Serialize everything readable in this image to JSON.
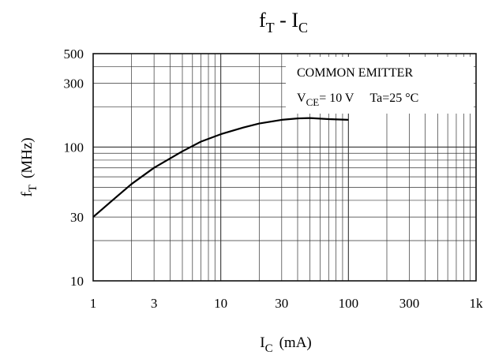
{
  "chart_data": {
    "type": "line",
    "title": {
      "main": "f",
      "sub": "T",
      "sep": " - ",
      "main2": "I",
      "sub2": "C"
    },
    "xlabel": {
      "main": "I",
      "sub": "C",
      "unit": "(mA)"
    },
    "ylabel": {
      "main": "f",
      "sub": "T",
      "unit": "(MHz)"
    },
    "xscale": "log",
    "yscale": "log",
    "xlim": [
      1,
      1000
    ],
    "ylim": [
      10,
      500
    ],
    "xticks": [
      {
        "value": 1,
        "label": "1"
      },
      {
        "value": 3,
        "label": "3"
      },
      {
        "value": 10,
        "label": "10"
      },
      {
        "value": 30,
        "label": "30"
      },
      {
        "value": 100,
        "label": "100"
      },
      {
        "value": 300,
        "label": "300"
      },
      {
        "value": 1000,
        "label": "1k"
      }
    ],
    "yticks": [
      {
        "value": 10,
        "label": "10"
      },
      {
        "value": 30,
        "label": "30"
      },
      {
        "value": 100,
        "label": "100"
      },
      {
        "value": 300,
        "label": "300"
      },
      {
        "value": 500,
        "label": "500"
      }
    ],
    "grid": true,
    "annotations": {
      "line1": "COMMON EMITTER",
      "line2_main": "V",
      "line2_sub": "CE",
      "line2_value": "= 10 V",
      "line2_temp": "Ta=25 °C",
      "placement": "top-right"
    },
    "series": [
      {
        "x": [
          1,
          1.5,
          2,
          3,
          5,
          7,
          10,
          15,
          20,
          30,
          40,
          50,
          70,
          100
        ],
        "y": [
          30,
          42,
          53,
          70,
          93,
          110,
          125,
          140,
          150,
          160,
          164,
          165,
          162,
          160
        ]
      }
    ]
  }
}
